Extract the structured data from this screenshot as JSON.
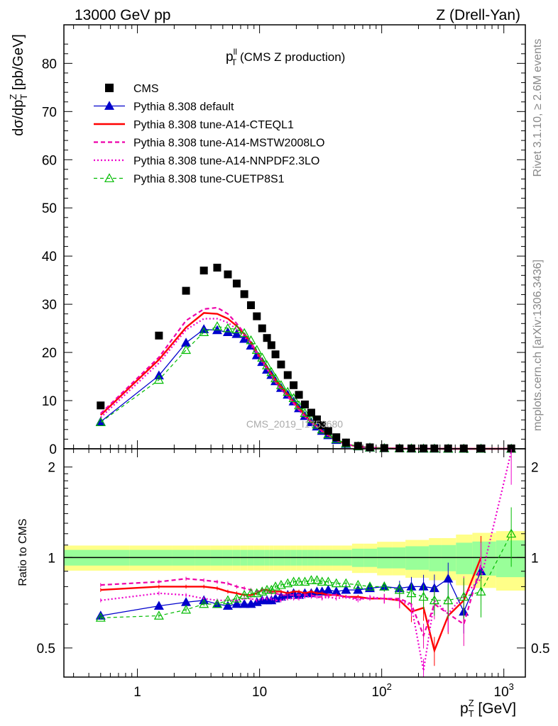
{
  "header": {
    "left": "13000 GeV pp",
    "right": "Z (Drell-Yan)",
    "side_top": "Rivet 3.1.10, ≥ 2.6M events",
    "side_bottom": "mcplots.cern.ch [arXiv:1306.3436]",
    "watermark": "CMS_2019_I1753680"
  },
  "colors": {
    "cms": "#000000",
    "default": "#0000cc",
    "cteql1": "#ff0000",
    "mstw": "#ee00aa",
    "nnpdf": "#ee00cc",
    "cuetp": "#00bb00",
    "band_yellow": "#ffff88",
    "band_green": "#99ff99"
  },
  "chart_data": {
    "type": "scatter",
    "x_scale": "log",
    "xlim": [
      0.25,
      1500
    ],
    "top_panel": {
      "title": "p_T^ll (CMS Z production)",
      "title_main": "p",
      "title_sup": "ll",
      "title_sub": "T",
      "title_rest": " (CMS Z production)",
      "ylabel": "dσ/dp_T^Z [pb/GeV]",
      "ylabel_main": "dσ/dp",
      "ylabel_sup": "Z",
      "ylabel_sub": "T",
      "ylabel_rest": " [pb/GeV]",
      "ylim": [
        0,
        88
      ],
      "yticks": [
        0,
        10,
        20,
        30,
        40,
        50,
        60,
        70,
        80
      ],
      "ytick_labels": [
        "0",
        "10",
        "20",
        "30",
        "40",
        "50",
        "60",
        "70",
        "80"
      ]
    },
    "ratio_panel": {
      "ylabel": "Ratio to CMS",
      "y_scale": "log",
      "ylim": [
        0.4,
        2.3
      ],
      "yticks": [
        0.5,
        1,
        2
      ],
      "ytick_labels": [
        "0.5",
        "1",
        "2"
      ]
    },
    "x_axis": {
      "label_main": "p",
      "label_sup": "Z",
      "label_sub": "T",
      "label_rest": " [GeV]",
      "ticks": [
        1,
        10,
        100,
        1000
      ],
      "tick_labels": [
        {
          "base": "1",
          "exp": ""
        },
        {
          "base": "10",
          "exp": ""
        },
        {
          "base": "10",
          "exp": "2"
        },
        {
          "base": "10",
          "exp": "3"
        }
      ]
    },
    "x": [
      0.5,
      1.5,
      2.5,
      3.5,
      4.5,
      5.5,
      6.5,
      7.5,
      8.5,
      9.5,
      10.5,
      11.5,
      12.5,
      13.5,
      15,
      17,
      19,
      21,
      23.5,
      26.5,
      29.5,
      32.5,
      36.5,
      42.5,
      51,
      64,
      80,
      105,
      140,
      175,
      220,
      270,
      350,
      470,
      650,
      1150
    ],
    "cms": [
      9.0,
      23.5,
      32.8,
      37.0,
      37.6,
      36.2,
      34.3,
      32.1,
      29.8,
      27.5,
      25.0,
      23.0,
      21.5,
      19.6,
      17.5,
      15.3,
      13.2,
      11.2,
      9.2,
      7.5,
      6.1,
      4.9,
      3.7,
      2.4,
      1.3,
      0.6,
      0.3,
      0.15,
      0.08,
      0.05,
      0.03,
      0.02,
      0.01,
      0.006,
      0.003,
      0.0015
    ],
    "cms_band_rel": [
      0.06,
      0.06,
      0.06,
      0.06,
      0.06,
      0.06,
      0.06,
      0.06,
      0.06,
      0.06,
      0.06,
      0.06,
      0.06,
      0.06,
      0.06,
      0.06,
      0.06,
      0.06,
      0.06,
      0.06,
      0.06,
      0.06,
      0.06,
      0.06,
      0.06,
      0.07,
      0.07,
      0.08,
      0.08,
      0.09,
      0.09,
      0.1,
      0.1,
      0.12,
      0.13,
      0.14
    ],
    "series": [
      {
        "key": "default",
        "name": "Pythia 8.308 default",
        "values": [
          5.6,
          15.2,
          22.0,
          24.8,
          24.6,
          24.2,
          23.8,
          22.8,
          21.4,
          19.4,
          18.0,
          16.4,
          15.3,
          14.0,
          12.6,
          11.2,
          9.8,
          8.4,
          6.8,
          5.5,
          4.6,
          3.7,
          2.8,
          1.8,
          1.0,
          0.48,
          0.24,
          0.11,
          0.06,
          0.04,
          0.024,
          0.016,
          0.0085,
          0.004,
          0.0027,
          0.0005
        ],
        "ratio": [
          0.64,
          0.69,
          0.71,
          0.72,
          0.7,
          0.69,
          0.7,
          0.7,
          0.7,
          0.71,
          0.72,
          0.72,
          0.72,
          0.73,
          0.74,
          0.75,
          0.76,
          0.75,
          0.76,
          0.76,
          0.77,
          0.77,
          0.78,
          0.77,
          0.78,
          0.78,
          0.79,
          0.8,
          0.79,
          0.8,
          0.8,
          0.79,
          0.85,
          0.66,
          0.9,
          null
        ]
      },
      {
        "key": "cteql1",
        "name": "Pythia 8.308 tune-A14-CTEQL1",
        "values": [
          7.0,
          18.5,
          25.2,
          28.2,
          28.0,
          27.0,
          25.5,
          23.8,
          22.0,
          20.0,
          18.3,
          16.9,
          15.5,
          14.3,
          12.9,
          11.3,
          9.7,
          8.5,
          6.9,
          5.6,
          4.6,
          3.7,
          2.8,
          1.8,
          0.96,
          0.45,
          0.23,
          0.11,
          0.06,
          0.036,
          0.02,
          0.011,
          0.0065,
          0.004,
          0.003,
          0.0
        ],
        "ratio": [
          0.78,
          0.8,
          0.8,
          0.8,
          0.79,
          0.77,
          0.76,
          0.75,
          0.75,
          0.76,
          0.78,
          0.78,
          0.77,
          0.77,
          0.77,
          0.76,
          0.77,
          0.77,
          0.76,
          0.77,
          0.76,
          0.76,
          0.75,
          0.75,
          0.74,
          0.74,
          0.73,
          0.73,
          0.72,
          0.66,
          0.68,
          0.49,
          0.64,
          0.72,
          1.0,
          null
        ]
      },
      {
        "key": "mstw",
        "name": "Pythia 8.308 tune-A14-MSTW2008LO",
        "values": [
          7.3,
          19.0,
          26.6,
          29.0,
          29.3,
          28.0,
          26.0,
          24.0,
          22.0,
          20.0,
          18.3,
          16.6,
          15.2,
          13.8,
          12.3,
          10.9,
          9.4,
          8.1,
          6.7,
          5.5,
          4.5,
          3.6,
          2.8,
          1.8,
          0.96,
          0.45,
          0.23,
          0.11,
          0.06,
          0.035,
          0.016,
          0.01,
          0.006,
          0.003,
          0.0025,
          0.0
        ],
        "ratio": [
          0.81,
          0.83,
          0.85,
          0.84,
          0.83,
          0.82,
          0.8,
          0.79,
          0.78,
          0.77,
          0.78,
          0.77,
          0.76,
          0.76,
          0.75,
          0.75,
          0.75,
          0.75,
          0.75,
          0.75,
          0.74,
          0.74,
          0.75,
          0.75,
          0.74,
          0.73,
          0.73,
          0.73,
          0.73,
          0.7,
          0.55,
          0.7,
          0.65,
          0.6,
          0.95,
          null
        ]
      },
      {
        "key": "nnpdf",
        "name": "Pythia 8.308 tune-A14-NNPDF2.3LO",
        "values": [
          6.5,
          17.8,
          24.7,
          27.0,
          27.0,
          26.2,
          24.8,
          23.3,
          21.5,
          19.6,
          18.0,
          16.6,
          15.2,
          13.8,
          12.3,
          10.8,
          9.4,
          8.0,
          6.6,
          5.4,
          4.5,
          3.6,
          2.7,
          1.8,
          0.94,
          0.44,
          0.22,
          0.11,
          0.058,
          0.034,
          0.012,
          0.01,
          0.006,
          0.0035,
          0.0024,
          0.0033
        ],
        "ratio": [
          0.72,
          0.76,
          0.75,
          0.73,
          0.72,
          0.72,
          0.72,
          0.73,
          0.73,
          0.72,
          0.73,
          0.73,
          0.73,
          0.72,
          0.72,
          0.73,
          0.73,
          0.73,
          0.74,
          0.74,
          0.74,
          0.73,
          0.74,
          0.73,
          0.74,
          0.72,
          0.74,
          0.73,
          0.72,
          0.69,
          0.42,
          0.72,
          0.65,
          0.75,
          0.85,
          2.25
        ]
      },
      {
        "key": "cuetp",
        "name": "Pythia 8.308 tune-CUETP8S1",
        "values": [
          5.5,
          14.3,
          20.5,
          24.2,
          25.4,
          25.0,
          24.8,
          24.0,
          22.5,
          20.5,
          18.9,
          17.3,
          15.9,
          14.6,
          13.2,
          11.8,
          10.5,
          9.0,
          7.4,
          6.2,
          5.0,
          4.0,
          3.0,
          2.0,
          1.1,
          0.5,
          0.24,
          0.12,
          0.06,
          0.04,
          0.02,
          0.014,
          0.007,
          0.004,
          0.0023,
          0.0018
        ],
        "ratio": [
          0.63,
          0.64,
          0.67,
          0.7,
          0.7,
          0.72,
          0.73,
          0.75,
          0.76,
          0.76,
          0.77,
          0.78,
          0.78,
          0.8,
          0.81,
          0.82,
          0.83,
          0.83,
          0.83,
          0.84,
          0.84,
          0.83,
          0.83,
          0.82,
          0.82,
          0.81,
          0.8,
          0.8,
          0.78,
          0.76,
          0.74,
          0.72,
          0.72,
          0.74,
          0.77,
          1.2
        ]
      }
    ]
  }
}
